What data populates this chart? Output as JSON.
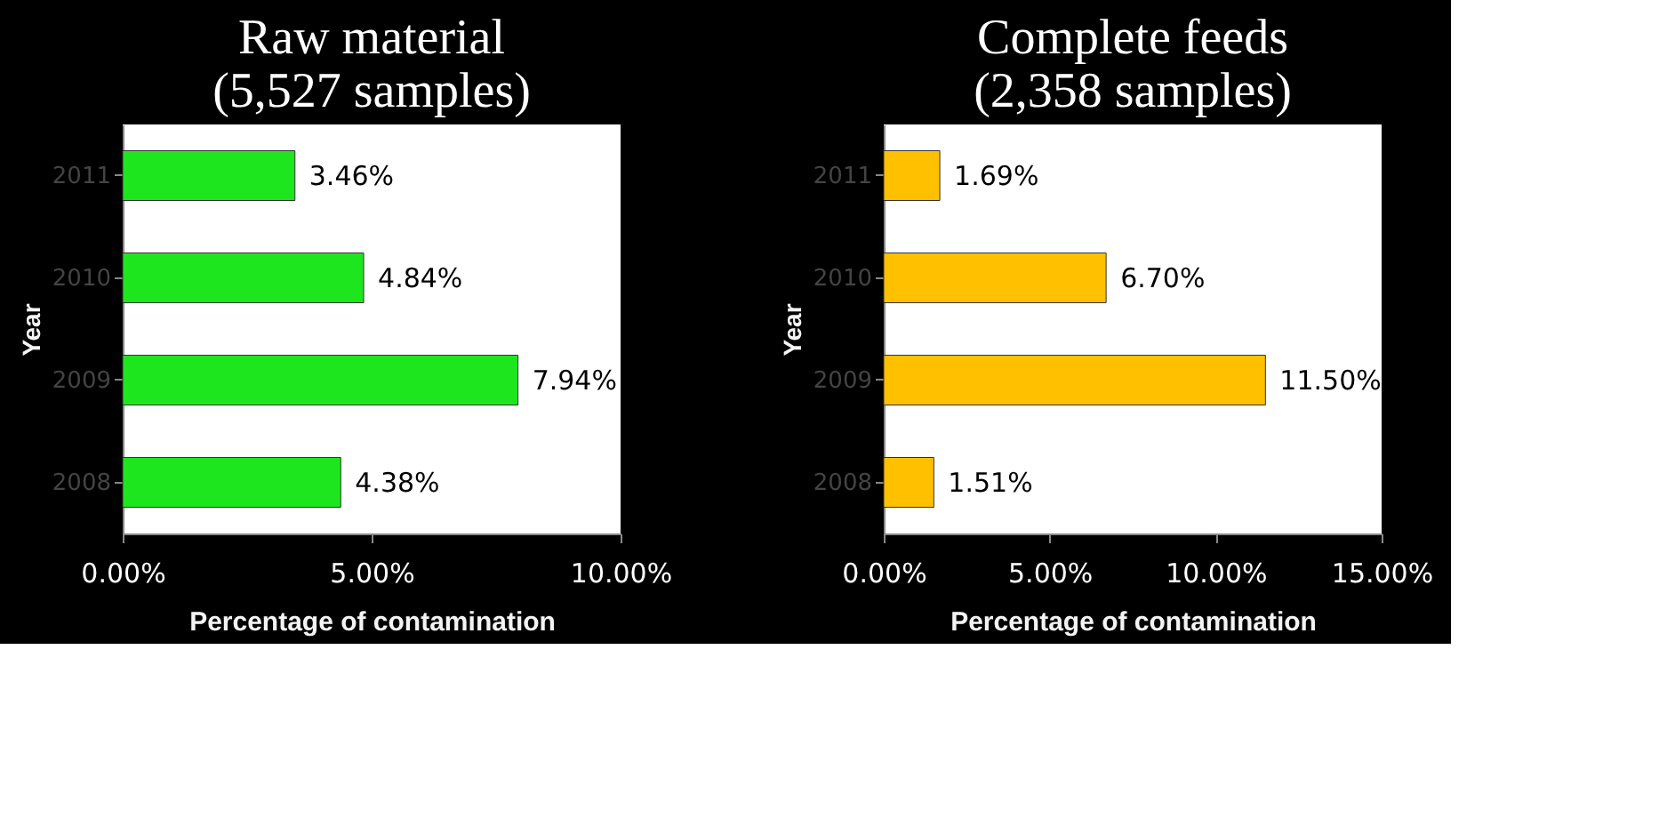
{
  "chart_data": [
    {
      "type": "bar",
      "orientation": "horizontal",
      "title": "Raw material (5,527 samples)",
      "xlabel": "Percentage of contamination",
      "ylabel": "Year",
      "categories": [
        "2011",
        "2010",
        "2009",
        "2008"
      ],
      "values": [
        3.46,
        4.84,
        7.94,
        4.38
      ],
      "color": "#1ee61e",
      "value_labels": [
        "3.46%",
        "4.84%",
        "7.94%",
        "4.38%"
      ],
      "xlim": [
        0,
        10
      ],
      "xticks": [
        {
          "value": 0,
          "label": "0.00%"
        },
        {
          "value": 5,
          "label": "5.00%"
        },
        {
          "value": 10,
          "label": "10.00%"
        }
      ],
      "grid": false
    },
    {
      "type": "bar",
      "orientation": "horizontal",
      "title": "Complete feeds (2,358 samples)",
      "xlabel": "Percentage of contamination",
      "ylabel": "Year",
      "categories": [
        "2011",
        "2010",
        "2009",
        "2008"
      ],
      "values": [
        1.69,
        6.7,
        11.5,
        1.51
      ],
      "color": "#ffc000",
      "value_labels": [
        "1.69%",
        "6.70%",
        "11.50%",
        "1.51%"
      ],
      "xlim": [
        0,
        15
      ],
      "xticks": [
        {
          "value": 0,
          "label": "0.00%"
        },
        {
          "value": 5,
          "label": "5.00%"
        },
        {
          "value": 10,
          "label": "10.00%"
        },
        {
          "value": 15,
          "label": "15.00%"
        }
      ],
      "grid": false
    }
  ]
}
